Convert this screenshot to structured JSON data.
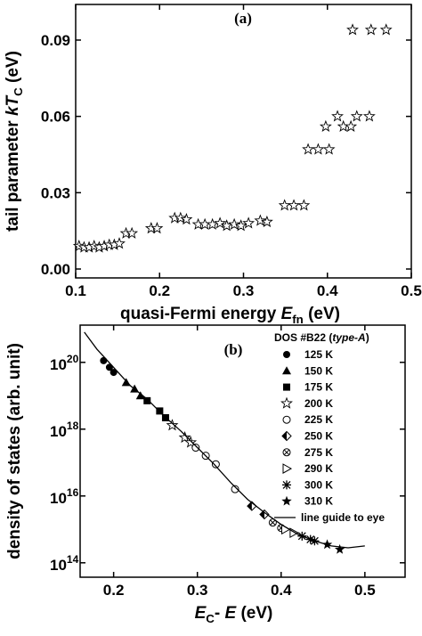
{
  "chart_data": [
    {
      "type": "scatter",
      "title": "(a)",
      "xlabel": [
        {
          "text": "quasi-Fermi energy ",
          "style": "normal"
        },
        {
          "text": "E",
          "style": "italic"
        },
        {
          "text": "fn",
          "style": "sub"
        },
        {
          "text": " (eV)",
          "style": "normal"
        }
      ],
      "ylabel": [
        {
          "text": "tail parameter ",
          "style": "normal"
        },
        {
          "text": "kT",
          "style": "italic"
        },
        {
          "text": "C",
          "style": "sub"
        },
        {
          "text": " (eV)",
          "style": "normal"
        }
      ],
      "marker": "star-open",
      "color": "#000000",
      "x": [
        0.104,
        0.11,
        0.116,
        0.122,
        0.128,
        0.134,
        0.14,
        0.146,
        0.152,
        0.16,
        0.167,
        0.19,
        0.197,
        0.218,
        0.225,
        0.232,
        0.246,
        0.254,
        0.263,
        0.272,
        0.28,
        0.289,
        0.297,
        0.306,
        0.32,
        0.328,
        0.349,
        0.36,
        0.372,
        0.377,
        0.389,
        0.402,
        0.398,
        0.412,
        0.419,
        0.428,
        0.435,
        0.45,
        0.43,
        0.452,
        0.47
      ],
      "values": [
        0.009,
        0.0085,
        0.0085,
        0.009,
        0.0085,
        0.009,
        0.0095,
        0.0095,
        0.01,
        0.014,
        0.014,
        0.016,
        0.016,
        0.02,
        0.02,
        0.0195,
        0.0175,
        0.0175,
        0.0175,
        0.018,
        0.017,
        0.0175,
        0.017,
        0.018,
        0.019,
        0.0185,
        0.025,
        0.025,
        0.025,
        0.047,
        0.047,
        0.047,
        0.056,
        0.06,
        0.056,
        0.056,
        0.06,
        0.06,
        0.094,
        0.094,
        0.094
      ],
      "xlim": [
        0.1,
        0.5
      ],
      "ylim": [
        -0.0035,
        0.104
      ],
      "xticks": [
        0.1,
        0.2,
        0.3,
        0.4,
        0.5
      ],
      "yticks": [
        {
          "value": 0,
          "label": "0.00"
        },
        0.03,
        0.06,
        0.09
      ]
    },
    {
      "type": "scatter",
      "title": "(b)",
      "ylog": true,
      "xlabel": [
        {
          "text": "E",
          "style": "italic"
        },
        {
          "text": "C",
          "style": "sub"
        },
        {
          "text": "- ",
          "style": "normal"
        },
        {
          "text": "E",
          "style": "italic"
        },
        {
          "text": " (eV)",
          "style": "normal"
        }
      ],
      "ylabel": [
        {
          "text": "density of states (arb. unit)",
          "style": "normal"
        }
      ],
      "legend_title": [
        {
          "text": "DOS #B22 (",
          "style": "normal"
        },
        {
          "text": "type-A",
          "style": "italic"
        },
        {
          "text": ")",
          "style": "normal"
        }
      ],
      "legend": "upper right",
      "xlim": [
        0.16,
        0.548
      ],
      "ylim": [
        37000000000000.0,
        1.3e+21
      ],
      "xticks": [
        0.2,
        0.3,
        0.4,
        0.5
      ],
      "yticks": [
        {
          "value": 100000000000000.0,
          "label": "10",
          "sup": "14"
        },
        {
          "value": 1e+16,
          "label": "10",
          "sup": "16"
        },
        {
          "value": 1e+18,
          "label": "10",
          "sup": "18"
        },
        {
          "value": 1e+20,
          "label": "10",
          "sup": "20"
        }
      ],
      "series": [
        {
          "name": "125 K",
          "marker": "circle",
          "color": "#000000",
          "x": [
            0.188,
            0.195,
            0.2
          ],
          "values": [
            1.12e+20,
            7.1e+19,
            5e+19
          ]
        },
        {
          "name": "150 K",
          "marker": "triangle",
          "color": "#000000",
          "x": [
            0.215,
            0.225,
            0.232
          ],
          "values": [
            2.5e+19,
            1.6e+19,
            1e+19
          ]
        },
        {
          "name": "175 K",
          "marker": "square",
          "color": "#000000",
          "x": [
            0.24,
            0.255,
            0.262
          ],
          "values": [
            7.1e+18,
            3.5e+18,
            2.2e+18
          ]
        },
        {
          "name": "200 K",
          "marker": "star-open",
          "color": "#000000",
          "x": [
            0.27,
            0.285,
            0.292
          ],
          "values": [
            1.3e+18,
            5.6e+17,
            4e+17
          ]
        },
        {
          "name": "225 K",
          "marker": "circle-open",
          "color": "#000000",
          "x": [
            0.298,
            0.31,
            0.322,
            0.345
          ],
          "values": [
            2.8e+17,
            1.6e+17,
            8.9e+16,
            1.6e+16
          ]
        },
        {
          "name": "250 K",
          "marker": "diamond-half",
          "color": "#000000",
          "x": [
            0.365,
            0.38
          ],
          "values": [
            5000000000000000.0,
            2800000000000000.0
          ]
        },
        {
          "name": "275 K",
          "marker": "circle-x",
          "color": "#000000",
          "x": [
            0.39,
            0.4
          ],
          "values": [
            1600000000000000.0,
            1100000000000000.0
          ]
        },
        {
          "name": "290 K",
          "marker": "triangle-right-open",
          "color": "#000000",
          "x": [
            0.405,
            0.415
          ],
          "values": [
            1000000000000000.0,
            790000000000000.0
          ]
        },
        {
          "name": "300 K",
          "marker": "asterisk",
          "color": "#000000",
          "x": [
            0.425,
            0.435,
            0.44
          ],
          "values": [
            630000000000000.0,
            500000000000000.0,
            450000000000000.0
          ]
        },
        {
          "name": "310 K",
          "marker": "star",
          "color": "#000000",
          "x": [
            0.455,
            0.47
          ],
          "values": [
            350000000000000.0,
            250000000000000.0
          ]
        },
        {
          "name": "line guide to eye",
          "marker": "line",
          "color": "#000000",
          "x": [
            0.165,
            0.18,
            0.2,
            0.22,
            0.24,
            0.26,
            0.28,
            0.3,
            0.32,
            0.34,
            0.36,
            0.38,
            0.4,
            0.42,
            0.44,
            0.46,
            0.48,
            0.5
          ],
          "values": [
            8e+20,
            2.5e+20,
            7.1e+19,
            2e+19,
            7.9e+18,
            2.5e+18,
            8.9e+17,
            2.8e+17,
            8.9e+16,
            2.5e+16,
            7900000000000000.0,
            3200000000000000.0,
            1400000000000000.0,
            710000000000000.0,
            450000000000000.0,
            320000000000000.0,
            280000000000000.0,
            320000000000000.0
          ]
        }
      ]
    }
  ]
}
